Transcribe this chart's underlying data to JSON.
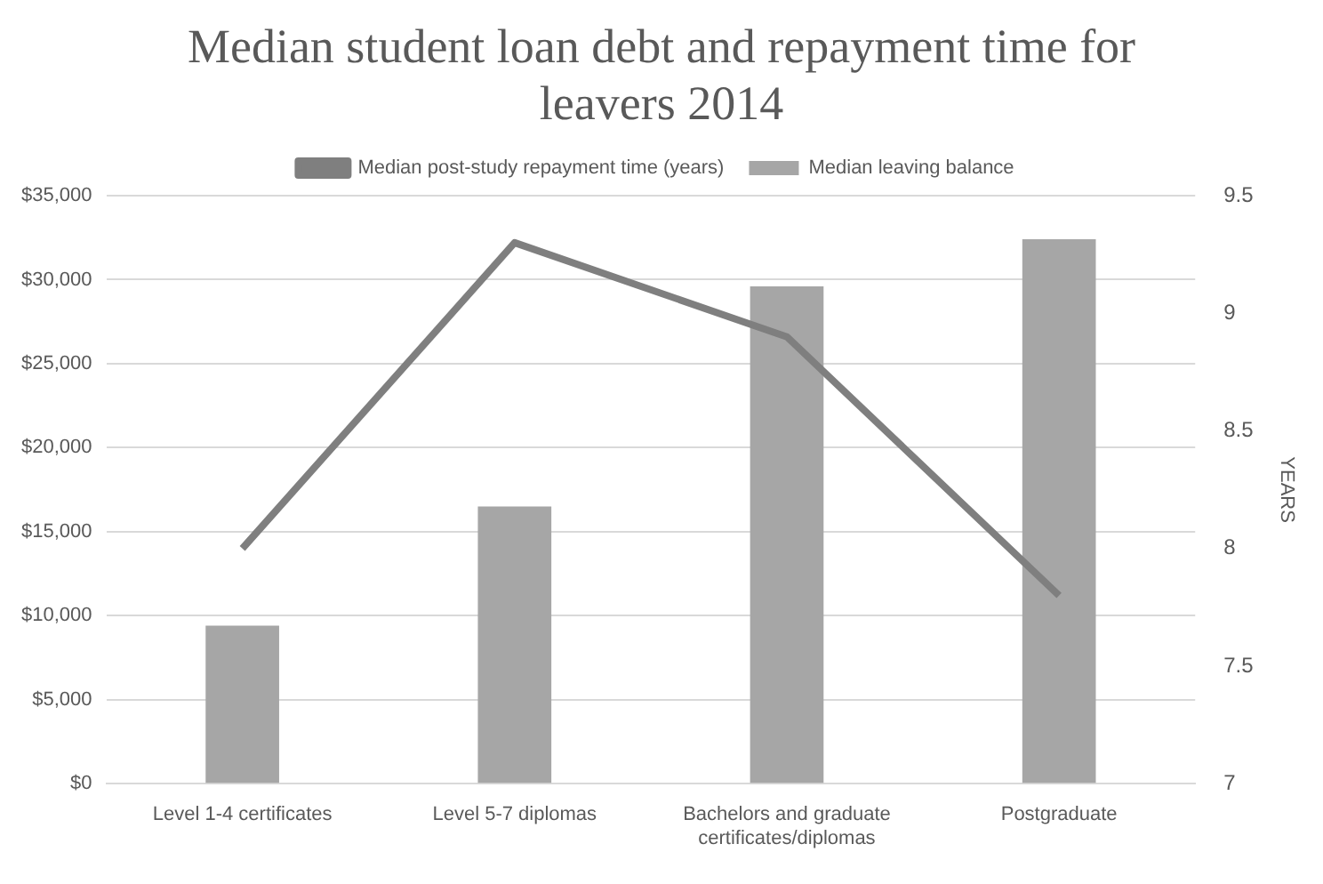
{
  "chart_data": {
    "type": "bar",
    "title": "Median student loan debt and repayment time for leavers 2014",
    "y2label": "YEARS",
    "categories": [
      "Level 1-4 certificates",
      "Level 5-7 diplomas",
      "Bachelors and graduate certificates/diplomas",
      "Postgraduate"
    ],
    "series": [
      {
        "name": "Median leaving balance",
        "color": "#a6a6a6",
        "values": [
          9400,
          16500,
          29600,
          32400
        ]
      },
      {
        "name": "Median post-study repayment time (years)",
        "type": "line",
        "axis": "y2",
        "color": "#7f7f7f",
        "values": [
          8.0,
          9.3,
          8.9,
          7.8
        ]
      }
    ],
    "ylim": [
      0,
      35000
    ],
    "yticks": [
      {
        "value": 0,
        "label": "$0"
      },
      {
        "value": 5000,
        "label": "$5,000"
      },
      {
        "value": 10000,
        "label": "$10,000"
      },
      {
        "value": 15000,
        "label": "$15,000"
      },
      {
        "value": 20000,
        "label": "$20,000"
      },
      {
        "value": 25000,
        "label": "$25,000"
      },
      {
        "value": 30000,
        "label": "$30,000"
      },
      {
        "value": 35000,
        "label": "$35,000"
      }
    ],
    "y2lim": [
      7,
      9.5
    ],
    "y2ticks": [
      7,
      7.5,
      8,
      8.5,
      9,
      9.5
    ],
    "grid": "y",
    "legend": "top",
    "marker": "none"
  }
}
